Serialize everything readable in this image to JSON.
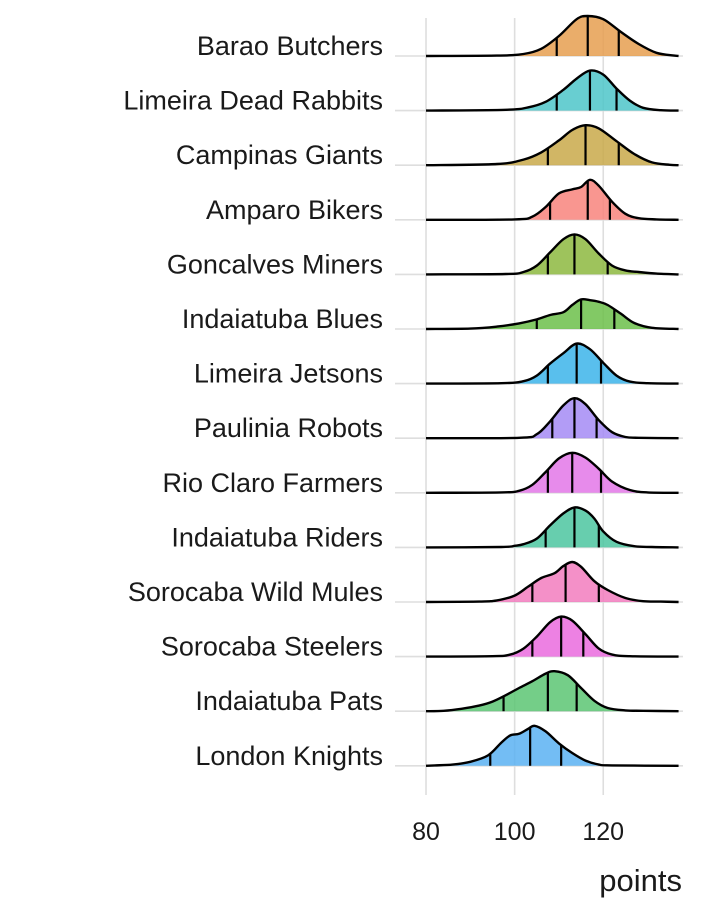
{
  "chart_data": {
    "type": "ridgeline",
    "xlabel": "points",
    "ylabel": "",
    "xlim": [
      73,
      138
    ],
    "x_ticks": [
      80,
      100,
      120
    ],
    "x_tick_labels": [
      "80",
      "100",
      "120"
    ],
    "grid": "vertical major gridlines",
    "quantile_lines": "25th, 50th and 75th percentiles",
    "categories": [
      "Barao Butchers",
      "Limeira Dead Rabbits",
      "Campinas Giants",
      "Amparo Bikers",
      "Goncalves Miners",
      "Indaiatuba Blues",
      "Limeira Jetsons",
      "Paulinia Robots",
      "Rio Claro Farmers",
      "Indaiatuba Riders",
      "Sorocaba Wild Mules",
      "Sorocaba Steelers",
      "Indaiatuba Pats",
      "London Knights"
    ],
    "series": [
      {
        "color": "#E69F50",
        "range": [
          80,
          137
        ],
        "quantiles": [
          109.5,
          116.5,
          123.5
        ],
        "density": [
          [
            80,
            0
          ],
          [
            96,
            0.01
          ],
          [
            102,
            0.05
          ],
          [
            106,
            0.18
          ],
          [
            110,
            0.5
          ],
          [
            114,
            0.92
          ],
          [
            116.5,
            1.0
          ],
          [
            120,
            0.92
          ],
          [
            124,
            0.6
          ],
          [
            128,
            0.3
          ],
          [
            132,
            0.08
          ],
          [
            136,
            0.01
          ],
          [
            137,
            0
          ]
        ]
      },
      {
        "color": "#4DC6C9",
        "range": [
          80,
          137
        ],
        "quantiles": [
          109.5,
          117,
          123
        ],
        "density": [
          [
            80,
            0
          ],
          [
            98,
            0.02
          ],
          [
            103,
            0.08
          ],
          [
            107,
            0.22
          ],
          [
            111,
            0.52
          ],
          [
            114,
            0.8
          ],
          [
            117,
            1.0
          ],
          [
            120,
            0.9
          ],
          [
            123,
            0.55
          ],
          [
            126,
            0.25
          ],
          [
            129,
            0.07
          ],
          [
            133,
            0.01
          ],
          [
            137,
            0
          ]
        ]
      },
      {
        "color": "#C9A94A",
        "range": [
          80,
          137
        ],
        "quantiles": [
          107.5,
          116,
          123.5
        ],
        "density": [
          [
            80,
            0
          ],
          [
            96,
            0.03
          ],
          [
            102,
            0.14
          ],
          [
            106,
            0.32
          ],
          [
            110,
            0.62
          ],
          [
            113,
            0.88
          ],
          [
            116,
            1.0
          ],
          [
            119,
            0.92
          ],
          [
            123,
            0.6
          ],
          [
            127,
            0.28
          ],
          [
            131,
            0.07
          ],
          [
            135,
            0.01
          ],
          [
            137,
            0
          ]
        ]
      },
      {
        "color": "#F8847C",
        "range": [
          80,
          137
        ],
        "quantiles": [
          108,
          116.5,
          121.5
        ],
        "density": [
          [
            80,
            0
          ],
          [
            100,
            0.01
          ],
          [
            104,
            0.08
          ],
          [
            107,
            0.32
          ],
          [
            110,
            0.66
          ],
          [
            113,
            0.76
          ],
          [
            115,
            0.82
          ],
          [
            117,
            1.0
          ],
          [
            119,
            0.85
          ],
          [
            122,
            0.45
          ],
          [
            125,
            0.15
          ],
          [
            128,
            0.04
          ],
          [
            132,
            0.01
          ],
          [
            137,
            0
          ]
        ]
      },
      {
        "color": "#8DB940",
        "range": [
          80,
          137
        ],
        "quantiles": [
          107.5,
          113.5,
          121
        ],
        "density": [
          [
            80,
            0
          ],
          [
            98,
            0.01
          ],
          [
            102,
            0.06
          ],
          [
            105,
            0.22
          ],
          [
            108,
            0.55
          ],
          [
            111,
            0.88
          ],
          [
            113.5,
            1.0
          ],
          [
            116,
            0.88
          ],
          [
            119,
            0.52
          ],
          [
            122,
            0.22
          ],
          [
            125,
            0.1
          ],
          [
            128,
            0.06
          ],
          [
            132,
            0.02
          ],
          [
            137,
            0
          ]
        ]
      },
      {
        "color": "#6CC04A",
        "range": [
          80,
          137
        ],
        "quantiles": [
          105,
          115,
          122.5
        ],
        "density": [
          [
            80,
            0
          ],
          [
            90,
            0.01
          ],
          [
            96,
            0.06
          ],
          [
            101,
            0.14
          ],
          [
            105,
            0.24
          ],
          [
            108,
            0.35
          ],
          [
            111,
            0.42
          ],
          [
            113,
            0.6
          ],
          [
            115,
            0.74
          ],
          [
            117,
            0.72
          ],
          [
            119,
            0.68
          ],
          [
            121,
            0.6
          ],
          [
            124,
            0.38
          ],
          [
            127,
            0.15
          ],
          [
            131,
            0.03
          ],
          [
            137,
            0
          ]
        ]
      },
      {
        "color": "#3CB4EA",
        "range": [
          80,
          137
        ],
        "quantiles": [
          107.5,
          114,
          119.5
        ],
        "density": [
          [
            80,
            0
          ],
          [
            97,
            0.01
          ],
          [
            102,
            0.06
          ],
          [
            105,
            0.2
          ],
          [
            108,
            0.5
          ],
          [
            111,
            0.76
          ],
          [
            114,
            1.0
          ],
          [
            117,
            0.86
          ],
          [
            120,
            0.52
          ],
          [
            123,
            0.2
          ],
          [
            126,
            0.05
          ],
          [
            130,
            0.01
          ],
          [
            137,
            0
          ]
        ]
      },
      {
        "color": "#A48BF5",
        "range": [
          80,
          137
        ],
        "quantiles": [
          108.5,
          113.5,
          118.5
        ],
        "density": [
          [
            80,
            0
          ],
          [
            101,
            0.01
          ],
          [
            105,
            0.1
          ],
          [
            108,
            0.42
          ],
          [
            111,
            0.82
          ],
          [
            113.5,
            1.0
          ],
          [
            116,
            0.85
          ],
          [
            119,
            0.45
          ],
          [
            122,
            0.15
          ],
          [
            125,
            0.03
          ],
          [
            128,
            0.01
          ],
          [
            137,
            0
          ]
        ]
      },
      {
        "color": "#E377E8",
        "range": [
          80,
          137
        ],
        "quantiles": [
          107.5,
          113,
          119.5
        ],
        "density": [
          [
            80,
            0
          ],
          [
            97,
            0.01
          ],
          [
            101,
            0.05
          ],
          [
            104,
            0.2
          ],
          [
            107,
            0.52
          ],
          [
            110,
            0.86
          ],
          [
            113,
            1.0
          ],
          [
            116,
            0.88
          ],
          [
            119,
            0.6
          ],
          [
            122,
            0.28
          ],
          [
            126,
            0.07
          ],
          [
            130,
            0.01
          ],
          [
            137,
            0
          ]
        ]
      },
      {
        "color": "#4CC6A0",
        "range": [
          80,
          137
        ],
        "quantiles": [
          107,
          113.5,
          119
        ],
        "density": [
          [
            80,
            0
          ],
          [
            97,
            0.01
          ],
          [
            100,
            0.04
          ],
          [
            102,
            0.08
          ],
          [
            105,
            0.22
          ],
          [
            108,
            0.55
          ],
          [
            111,
            0.85
          ],
          [
            113.5,
            1.0
          ],
          [
            116,
            0.92
          ],
          [
            118,
            0.72
          ],
          [
            120,
            0.4
          ],
          [
            123,
            0.14
          ],
          [
            127,
            0.03
          ],
          [
            131,
            0.01
          ],
          [
            137,
            0
          ]
        ]
      },
      {
        "color": "#F27DBE",
        "range": [
          80,
          137
        ],
        "quantiles": [
          104,
          111.5,
          119
        ],
        "density": [
          [
            80,
            0
          ],
          [
            92,
            0.01
          ],
          [
            96,
            0.04
          ],
          [
            100,
            0.16
          ],
          [
            103,
            0.38
          ],
          [
            106,
            0.6
          ],
          [
            109,
            0.72
          ],
          [
            111,
            0.9
          ],
          [
            113,
            1.0
          ],
          [
            115,
            0.88
          ],
          [
            118,
            0.52
          ],
          [
            121,
            0.3
          ],
          [
            125,
            0.1
          ],
          [
            129,
            0.02
          ],
          [
            133,
            0.01
          ],
          [
            137,
            0
          ]
        ]
      },
      {
        "color": "#EA6BDE",
        "range": [
          80,
          137
        ],
        "quantiles": [
          104,
          110.5,
          115.5
        ],
        "density": [
          [
            80,
            0
          ],
          [
            95,
            0.01
          ],
          [
            99,
            0.05
          ],
          [
            102,
            0.2
          ],
          [
            105,
            0.5
          ],
          [
            108,
            0.86
          ],
          [
            110.5,
            1.0
          ],
          [
            113,
            0.9
          ],
          [
            116,
            0.56
          ],
          [
            119,
            0.2
          ],
          [
            122,
            0.05
          ],
          [
            126,
            0.01
          ],
          [
            137,
            0
          ]
        ]
      },
      {
        "color": "#5CC573",
        "range": [
          80,
          137
        ],
        "quantiles": [
          97.5,
          107.5,
          114
        ],
        "density": [
          [
            80,
            0
          ],
          [
            84,
            0.01
          ],
          [
            88,
            0.06
          ],
          [
            92,
            0.14
          ],
          [
            95,
            0.24
          ],
          [
            98,
            0.4
          ],
          [
            101,
            0.58
          ],
          [
            104,
            0.75
          ],
          [
            107,
            0.94
          ],
          [
            109,
            1.0
          ],
          [
            112,
            0.9
          ],
          [
            115,
            0.58
          ],
          [
            118,
            0.26
          ],
          [
            121,
            0.08
          ],
          [
            125,
            0.02
          ],
          [
            129,
            0.01
          ],
          [
            137,
            0
          ]
        ]
      },
      {
        "color": "#5AB2F2",
        "range": [
          80,
          137
        ],
        "quantiles": [
          94.5,
          103.5,
          110.5
        ],
        "density": [
          [
            80,
            0
          ],
          [
            82,
            0.01
          ],
          [
            86,
            0.03
          ],
          [
            90,
            0.1
          ],
          [
            94,
            0.26
          ],
          [
            97,
            0.58
          ],
          [
            99,
            0.76
          ],
          [
            101,
            0.8
          ],
          [
            103,
            0.92
          ],
          [
            104.5,
            1.0
          ],
          [
            107,
            0.86
          ],
          [
            110,
            0.56
          ],
          [
            113,
            0.32
          ],
          [
            116,
            0.13
          ],
          [
            119,
            0.03
          ],
          [
            122,
            0.01
          ],
          [
            137,
            0
          ]
        ]
      }
    ]
  }
}
